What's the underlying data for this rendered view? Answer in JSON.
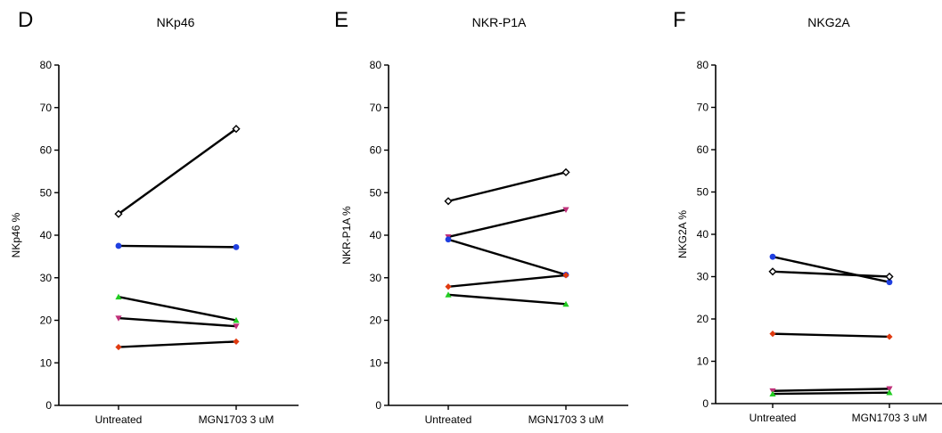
{
  "chart_data": [
    {
      "panel_letter": "D",
      "type": "line",
      "title": "NKp46",
      "ylabel": "NKp46 %",
      "categories": [
        "Untreated",
        "MGN1703 3 uM"
      ],
      "ylim": [
        0,
        80
      ],
      "yticks": [
        0,
        10,
        20,
        30,
        40,
        50,
        60,
        70,
        80
      ],
      "series": [
        {
          "marker": "diamond-open",
          "color": "#000000",
          "values": [
            45,
            65
          ]
        },
        {
          "marker": "circle",
          "color": "#1f3fe0",
          "values": [
            37.5,
            37.2
          ]
        },
        {
          "marker": "triangle-up",
          "color": "#22cc22",
          "values": [
            25.5,
            20
          ]
        },
        {
          "marker": "triangle-down",
          "color": "#c0307a",
          "values": [
            20.5,
            18.6
          ]
        },
        {
          "marker": "diamond",
          "color": "#e03a10",
          "values": [
            13.7,
            15
          ]
        }
      ]
    },
    {
      "panel_letter": "E",
      "type": "line",
      "title": "NKR-P1A",
      "ylabel": "NKR-P1A %",
      "categories": [
        "Untreated",
        "MGN1703 3 uM"
      ],
      "ylim": [
        0,
        80
      ],
      "yticks": [
        0,
        10,
        20,
        30,
        40,
        50,
        60,
        70,
        80
      ],
      "series": [
        {
          "marker": "diamond-open",
          "color": "#000000",
          "values": [
            48,
            54.8
          ]
        },
        {
          "marker": "triangle-down",
          "color": "#c0307a",
          "values": [
            39.6,
            46
          ]
        },
        {
          "marker": "circle",
          "color": "#1f3fe0",
          "values": [
            39,
            30.7
          ]
        },
        {
          "marker": "diamond",
          "color": "#e03a10",
          "values": [
            27.9,
            30.6
          ]
        },
        {
          "marker": "triangle-up",
          "color": "#22cc22",
          "values": [
            26,
            23.8
          ]
        }
      ]
    },
    {
      "panel_letter": "F",
      "type": "line",
      "title": "NKG2A",
      "ylabel": "NKG2A %",
      "categories": [
        "Untreated",
        "MGN1703 3 uM"
      ],
      "ylim": [
        0,
        80
      ],
      "yticks": [
        0,
        10,
        20,
        30,
        40,
        50,
        60,
        70,
        80
      ],
      "series": [
        {
          "marker": "circle",
          "color": "#1f3fe0",
          "values": [
            34.7,
            28.7
          ]
        },
        {
          "marker": "diamond-open",
          "color": "#000000",
          "values": [
            31.2,
            30
          ]
        },
        {
          "marker": "diamond",
          "color": "#e03a10",
          "values": [
            16.5,
            15.8
          ]
        },
        {
          "marker": "triangle-down",
          "color": "#c0307a",
          "values": [
            3,
            3.5
          ]
        },
        {
          "marker": "triangle-up",
          "color": "#22cc22",
          "values": [
            2.3,
            2.6
          ]
        }
      ]
    }
  ]
}
